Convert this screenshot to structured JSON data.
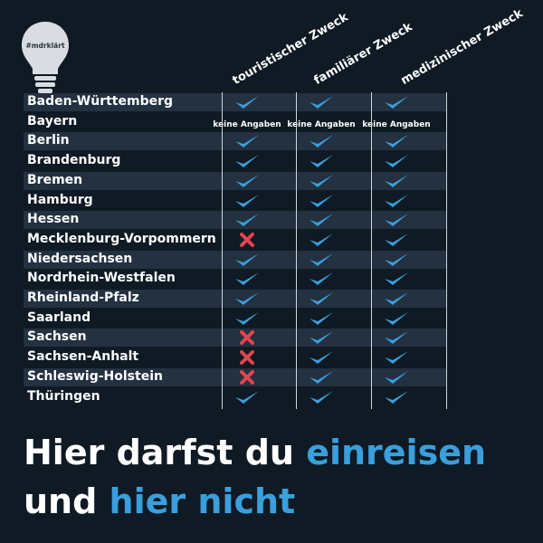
{
  "logo": {
    "hashtag": "#mdrklärt"
  },
  "columns": [
    "touristischer Zweck",
    "familiärer Zweck",
    "medizinischer Zweck"
  ],
  "na_text": "keine Angaben",
  "rows": [
    {
      "state": "Baden-Württemberg",
      "values": [
        "check",
        "check",
        "check"
      ]
    },
    {
      "state": "Bayern",
      "values": [
        "na",
        "na",
        "na"
      ]
    },
    {
      "state": "Berlin",
      "values": [
        "check",
        "check",
        "check"
      ]
    },
    {
      "state": "Brandenburg",
      "values": [
        "check",
        "check",
        "check"
      ]
    },
    {
      "state": "Bremen",
      "values": [
        "check",
        "check",
        "check"
      ]
    },
    {
      "state": "Hamburg",
      "values": [
        "check",
        "check",
        "check"
      ]
    },
    {
      "state": "Hessen",
      "values": [
        "check",
        "check",
        "check"
      ]
    },
    {
      "state": "Mecklenburg-Vorpommern",
      "values": [
        "cross",
        "check",
        "check"
      ]
    },
    {
      "state": "Niedersachsen",
      "values": [
        "check",
        "check",
        "check"
      ]
    },
    {
      "state": "Nordrhein-Westfalen",
      "values": [
        "check",
        "check",
        "check"
      ]
    },
    {
      "state": "Rheinland-Pfalz",
      "values": [
        "check",
        "check",
        "check"
      ]
    },
    {
      "state": "Saarland",
      "values": [
        "check",
        "check",
        "check"
      ]
    },
    {
      "state": "Sachsen",
      "values": [
        "cross",
        "check",
        "check"
      ]
    },
    {
      "state": "Sachsen-Anhalt",
      "values": [
        "cross",
        "check",
        "check"
      ]
    },
    {
      "state": "Schleswig-Holstein",
      "values": [
        "cross",
        "check",
        "check"
      ]
    },
    {
      "state": "Thüringen",
      "values": [
        "check",
        "check",
        "check"
      ]
    }
  ],
  "headline": {
    "line1_white": "Hier darfst du ",
    "line1_blue": "einreisen",
    "line2_white": "und ",
    "line2_blue": "hier nicht"
  },
  "colors": {
    "background": "#0f1a24",
    "row_shade": "#233140",
    "check": "#3a9fdc",
    "cross": "#e0454f",
    "accent_blue": "#3a9fdc"
  }
}
